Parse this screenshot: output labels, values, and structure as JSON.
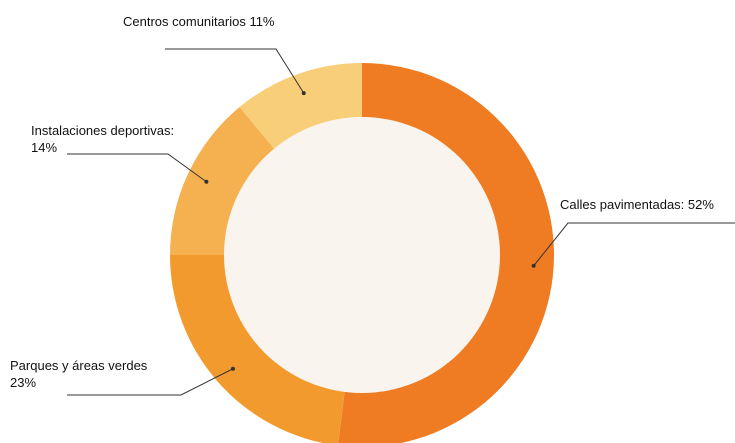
{
  "chart_data": {
    "type": "pie",
    "variant": "donut",
    "title": "",
    "slices": [
      {
        "name": "Calles pavimentadas",
        "value": 52,
        "color": "#EF7B22",
        "label_lines": [
          "Calles pavimentadas: 52%"
        ]
      },
      {
        "name": "Parques y áreas verdes",
        "value": 23,
        "color": "#F39A2E",
        "label_lines": [
          "Parques y áreas verdes",
          "23%"
        ]
      },
      {
        "name": "Instalaciones deportivas",
        "value": 14,
        "color": "#F5B050",
        "label_lines": [
          "Instalaciones deportivas:",
          "14%"
        ]
      },
      {
        "name": "Centros comunitarios",
        "value": 11,
        "color": "#F8CE78",
        "label_lines": [
          "Centros comunitarios 11%"
        ]
      }
    ],
    "center_fill": "#FAF4EE",
    "start_angle": "top",
    "direction": "clockwise",
    "legend": "none"
  }
}
